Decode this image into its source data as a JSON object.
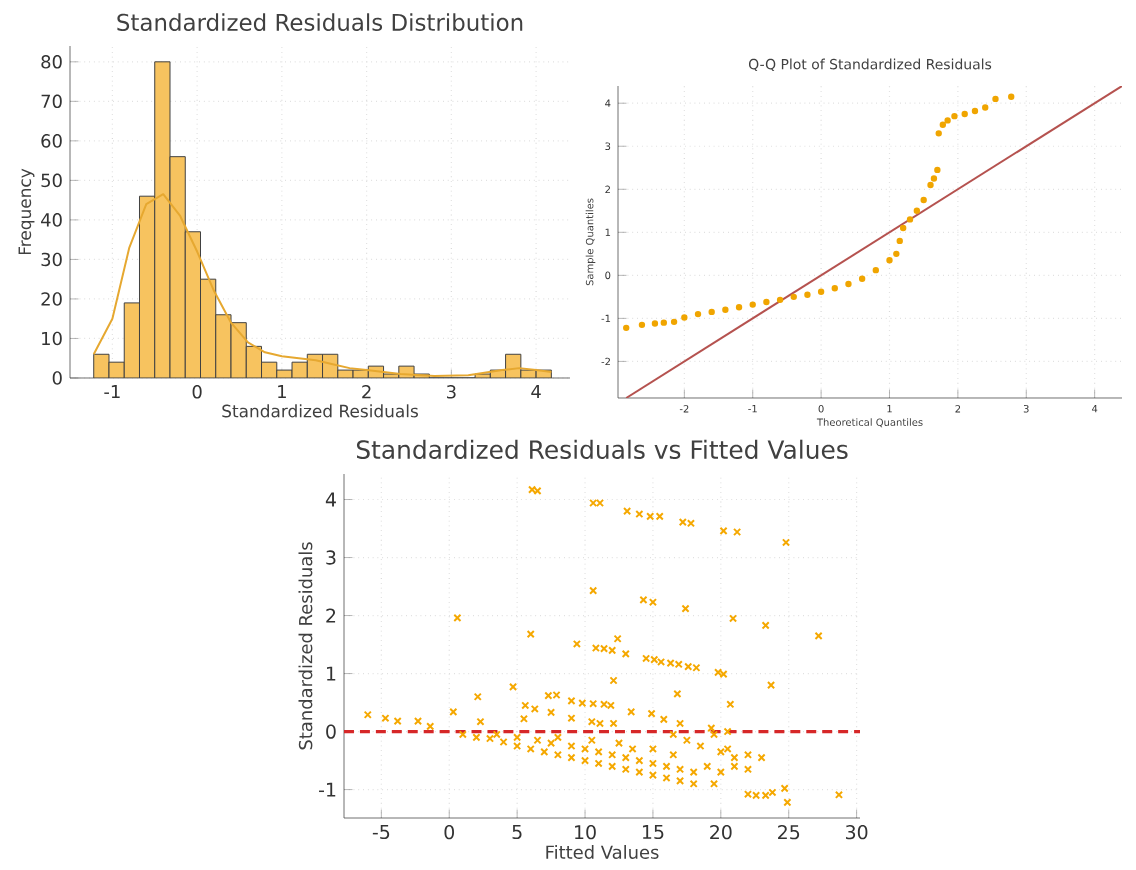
{
  "chart_data": [
    {
      "type": "histogram",
      "title": "Standardized Residuals Distribution",
      "xlabel": "Standardized Residuals",
      "ylabel": "Frequency",
      "series": [
        {
          "type": "histogram",
          "color": "#f7c35f",
          "bins": [
            -1.22,
            -1.04,
            -0.86,
            -0.68,
            -0.5,
            -0.32,
            -0.14,
            0.04,
            0.22,
            0.4,
            0.58,
            0.76,
            0.94,
            1.12,
            1.3,
            1.48,
            1.66,
            1.84,
            2.02,
            2.2,
            2.38,
            2.56,
            2.74,
            2.92,
            3.1,
            3.28,
            3.46,
            3.64,
            3.82,
            4.0,
            4.18
          ],
          "values": [
            6,
            4,
            19,
            46,
            80,
            56,
            37,
            25,
            16,
            14,
            8,
            4,
            2,
            4,
            6,
            6,
            2,
            2,
            3,
            1,
            3,
            1,
            0,
            0,
            0,
            1,
            2,
            6,
            2,
            2
          ]
        },
        {
          "type": "line",
          "color": "#e6a830",
          "x": [
            -1.22,
            -1.0,
            -0.8,
            -0.6,
            -0.4,
            -0.2,
            0,
            0.2,
            0.4,
            0.6,
            0.8,
            1.0,
            1.2,
            1.4,
            1.6,
            1.8,
            2.0,
            2.4,
            2.8,
            3.2,
            3.6,
            3.8,
            4.0,
            4.18
          ],
          "values": [
            6,
            15,
            33,
            44,
            46.5,
            41,
            32,
            22,
            14,
            9,
            6.5,
            5.5,
            5,
            4.5,
            3.5,
            2.5,
            2,
            1,
            0.5,
            0.7,
            2,
            2.5,
            2,
            1.5
          ]
        }
      ],
      "xlim": [
        -1.5,
        4.4
      ],
      "ylim": [
        0,
        84
      ],
      "xticks": [
        -1,
        0,
        1,
        2,
        3,
        4
      ],
      "yticks": [
        0,
        10,
        20,
        30,
        40,
        50,
        60,
        70,
        80
      ],
      "grid": true
    },
    {
      "type": "scatter",
      "title": "Q-Q Plot of Standardized Residuals",
      "xlabel": "Theoretical Quantiles",
      "ylabel": "Sample Quantiles",
      "series": [
        {
          "type": "scatter",
          "color": "#f0a500",
          "marker": "circle",
          "x": [
            -2.85,
            -2.62,
            -2.43,
            -2.3,
            -2.15,
            -2.0,
            -1.8,
            -1.6,
            -1.4,
            -1.2,
            -1.0,
            -0.8,
            -0.6,
            -0.4,
            -0.2,
            0,
            0.2,
            0.4,
            0.6,
            0.8,
            1.0,
            1.1,
            1.15,
            1.2,
            1.3,
            1.4,
            1.5,
            1.6,
            1.65,
            1.7,
            1.72,
            1.78,
            1.85,
            1.95,
            2.1,
            2.25,
            2.4,
            2.55,
            2.78
          ],
          "values": [
            -1.22,
            -1.15,
            -1.12,
            -1.1,
            -1.08,
            -0.98,
            -0.9,
            -0.85,
            -0.8,
            -0.74,
            -0.68,
            -0.62,
            -0.57,
            -0.5,
            -0.45,
            -0.38,
            -0.3,
            -0.2,
            -0.08,
            0.12,
            0.35,
            0.5,
            0.8,
            1.1,
            1.3,
            1.5,
            1.75,
            2.1,
            2.25,
            2.45,
            3.3,
            3.5,
            3.6,
            3.7,
            3.75,
            3.82,
            3.9,
            4.1,
            4.15
          ]
        },
        {
          "type": "line",
          "color": "#b5524f",
          "x": [
            -2.85,
            4.4
          ],
          "values": [
            -2.85,
            4.4
          ]
        }
      ],
      "xlim": [
        -2.97,
        4.4
      ],
      "ylim": [
        -2.85,
        4.4
      ],
      "xticks": [
        -2,
        -1,
        0,
        1,
        2,
        3,
        4
      ],
      "yticks": [
        -2,
        -1,
        0,
        1,
        2,
        3,
        4
      ],
      "grid": true
    },
    {
      "type": "scatter",
      "title": "Standardized Residuals vs Fitted Values",
      "xlabel": "Fitted Values",
      "ylabel": "Standardized Residuals",
      "marker": "cross",
      "color": "#f5a800",
      "x": [
        6.1,
        6.5,
        10.6,
        11.1,
        13.1,
        14.0,
        14.8,
        15.5,
        17.2,
        17.8,
        20.2,
        21.2,
        24.8,
        10.6,
        14.3,
        15.0,
        17.4,
        0.6,
        20.9,
        23.3,
        27.2,
        6.0,
        12.4,
        9.4,
        10.8,
        11.4,
        12.0,
        13.0,
        14.5,
        15.1,
        15.6,
        16.3,
        16.9,
        17.6,
        18.2,
        19.8,
        20.2,
        12.1,
        23.7,
        4.7,
        16.8,
        2.1,
        7.3,
        7.9,
        9.0,
        9.8,
        10.6,
        11.4,
        11.9,
        20.7,
        5.6,
        6.3,
        13.4,
        14.9,
        7.5,
        0.3,
        -6.0,
        -4.7,
        -3.8,
        -2.3,
        -1.4,
        2.3,
        5.5,
        9.0,
        10.5,
        11.1,
        12.1,
        15.8,
        17.0,
        19.3,
        20.5,
        1,
        2,
        3,
        4,
        3.5,
        5,
        5,
        6,
        6.5,
        7,
        7.5,
        8,
        8,
        9,
        9,
        10,
        10,
        10.5,
        11,
        11,
        12,
        12,
        12.5,
        13,
        13,
        13.5,
        14,
        14,
        15,
        15,
        15,
        16,
        16,
        16.5,
        17,
        17,
        17.5,
        18,
        18,
        19,
        19.5,
        20,
        20.5,
        21,
        21,
        22,
        22,
        23,
        22,
        22.6,
        23.3,
        23.8,
        24.7,
        24.9,
        28.7,
        18.5,
        19.5,
        16.5,
        20
      ],
      "values": [
        4.17,
        4.15,
        3.94,
        3.94,
        3.8,
        3.75,
        3.71,
        3.71,
        3.61,
        3.59,
        3.46,
        3.44,
        3.26,
        2.43,
        2.27,
        2.23,
        2.12,
        1.96,
        1.95,
        1.83,
        1.65,
        1.68,
        1.6,
        1.51,
        1.44,
        1.43,
        1.4,
        1.34,
        1.26,
        1.24,
        1.2,
        1.18,
        1.16,
        1.12,
        1.1,
        1.02,
        0.99,
        0.88,
        0.8,
        0.77,
        0.65,
        0.6,
        0.62,
        0.63,
        0.53,
        0.49,
        0.48,
        0.47,
        0.45,
        0.47,
        0.45,
        0.39,
        0.34,
        0.31,
        0.33,
        0.34,
        0.29,
        0.23,
        0.18,
        0.18,
        0.09,
        0.17,
        0.22,
        0.23,
        0.17,
        0.14,
        0.14,
        0.21,
        0.14,
        0.06,
        0.0,
        -0.05,
        -0.1,
        -0.12,
        -0.18,
        -0.05,
        -0.25,
        -0.1,
        -0.3,
        -0.15,
        -0.35,
        -0.2,
        -0.4,
        -0.1,
        -0.45,
        -0.25,
        -0.5,
        -0.3,
        -0.15,
        -0.55,
        -0.35,
        -0.6,
        -0.4,
        -0.2,
        -0.65,
        -0.45,
        -0.3,
        -0.7,
        -0.5,
        -0.75,
        -0.55,
        -0.3,
        -0.8,
        -0.6,
        -0.4,
        -0.85,
        -0.65,
        -0.15,
        -0.9,
        -0.7,
        -0.6,
        -0.9,
        -0.7,
        -0.3,
        -0.45,
        -0.6,
        -0.4,
        -0.65,
        -0.45,
        -1.08,
        -1.1,
        -1.1,
        -1.05,
        -0.98,
        -1.22,
        -1.09,
        -0.25,
        -0.05,
        -0.05,
        -0.35
      ],
      "ref_lines": [
        {
          "axis": "y",
          "value": 0,
          "color": "#d62728",
          "line_style": "dashed"
        }
      ],
      "xlim": [
        -7.75,
        30.25
      ],
      "ylim": [
        -1.49,
        4.44
      ],
      "xticks": [
        -5,
        0,
        5,
        10,
        15,
        20,
        25,
        30
      ],
      "yticks": [
        -1,
        0,
        1,
        2,
        3,
        4
      ],
      "grid": true
    }
  ]
}
